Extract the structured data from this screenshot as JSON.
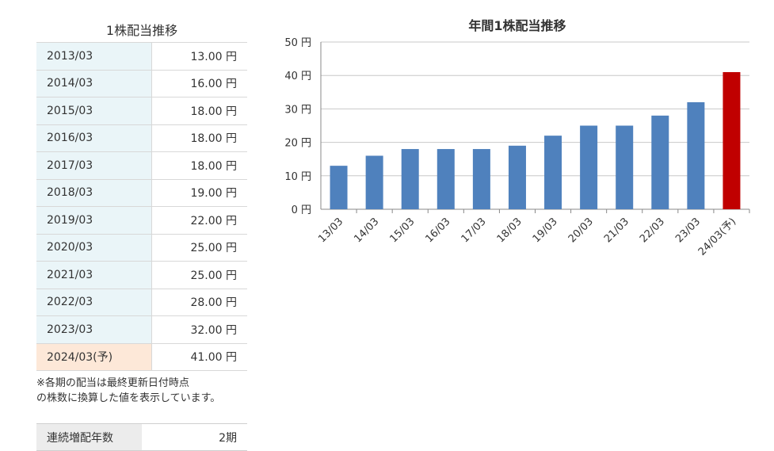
{
  "table": {
    "title": "1株配当推移",
    "rows": [
      {
        "period": "2013/03",
        "value": "13.00 円",
        "forecast": false
      },
      {
        "period": "2014/03",
        "value": "16.00 円",
        "forecast": false
      },
      {
        "period": "2015/03",
        "value": "18.00 円",
        "forecast": false
      },
      {
        "period": "2016/03",
        "value": "18.00 円",
        "forecast": false
      },
      {
        "period": "2017/03",
        "value": "18.00 円",
        "forecast": false
      },
      {
        "period": "2018/03",
        "value": "19.00 円",
        "forecast": false
      },
      {
        "period": "2019/03",
        "value": "22.00 円",
        "forecast": false
      },
      {
        "period": "2020/03",
        "value": "25.00 円",
        "forecast": false
      },
      {
        "period": "2021/03",
        "value": "25.00 円",
        "forecast": false
      },
      {
        "period": "2022/03",
        "value": "28.00 円",
        "forecast": false
      },
      {
        "period": "2023/03",
        "value": "32.00 円",
        "forecast": false
      },
      {
        "period": "2024/03(予)",
        "value": "41.00 円",
        "forecast": true
      }
    ],
    "note_line1": "※各期の配当は最終更新日付時点",
    "note_line2": "の株数に換算した値を表示しています。"
  },
  "streak": {
    "label": "連続増配年数",
    "value": "2期"
  },
  "chart_data": {
    "type": "bar",
    "title": "年間1株配当推移",
    "categories": [
      "13/03",
      "14/03",
      "15/03",
      "16/03",
      "17/03",
      "18/03",
      "19/03",
      "20/03",
      "21/03",
      "22/03",
      "23/03",
      "24/03(予)"
    ],
    "values": [
      13,
      16,
      18,
      18,
      18,
      19,
      22,
      25,
      25,
      28,
      32,
      41
    ],
    "forecast_index": 11,
    "ylim": [
      0,
      50
    ],
    "yticks": [
      0,
      10,
      20,
      30,
      40,
      50
    ],
    "ytick_labels": [
      "0 円",
      "10 円",
      "20 円",
      "30 円",
      "40 円",
      "50 円"
    ],
    "grid": true,
    "colors": {
      "bar": "#4f81bd",
      "forecast_bar": "#c00000",
      "grid": "#c8c8c8",
      "axis": "#888888"
    }
  }
}
